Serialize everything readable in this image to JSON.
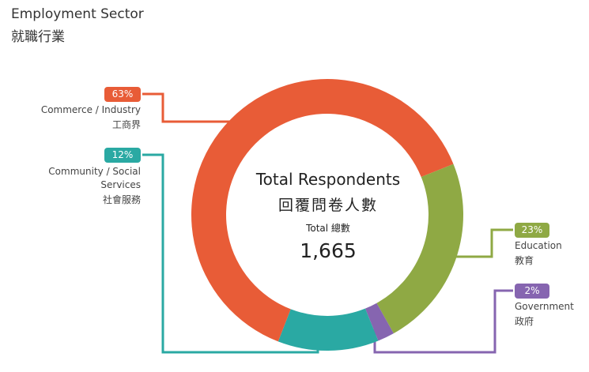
{
  "title": {
    "en": "Employment Sector",
    "zh": "就職行業"
  },
  "center": {
    "title_en": "Total Respondents",
    "title_zh": "回覆問卷人數",
    "total_label": "Total 總數",
    "total_value": "1,665"
  },
  "chart_data": {
    "type": "donut",
    "total": 1665,
    "series": [
      {
        "name": "Commerce / Industry",
        "name_zh": "工商界",
        "value": 63,
        "label": "63%",
        "color": "#e85c37"
      },
      {
        "name": "Education",
        "name_zh": "教育",
        "value": 23,
        "label": "23%",
        "color": "#8fa944"
      },
      {
        "name": "Government",
        "name_zh": "政府",
        "value": 2,
        "label": "2%",
        "color": "#8665b0"
      },
      {
        "name": "Community / Social Services",
        "name_zh": "社會服務",
        "value": 12,
        "label": "12%",
        "color": "#2aa9a3"
      }
    ]
  }
}
